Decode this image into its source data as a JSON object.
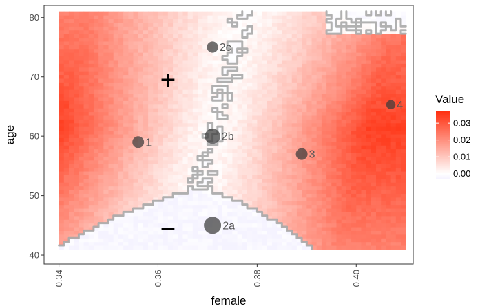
{
  "chart_data": {
    "type": "heatmap",
    "xlabel": "female",
    "ylabel": "age",
    "xlim": [
      0.337,
      0.4115
    ],
    "ylim": [
      38.5,
      82
    ],
    "x_ticks": [
      {
        "value": 0.34,
        "label": "0.34"
      },
      {
        "value": 0.36,
        "label": "0.36"
      },
      {
        "value": 0.38,
        "label": "0.38"
      },
      {
        "value": 0.4,
        "label": "0.40"
      }
    ],
    "y_ticks": [
      {
        "value": 40,
        "label": "40"
      },
      {
        "value": 50,
        "label": "50"
      },
      {
        "value": 60,
        "label": "60"
      },
      {
        "value": 70,
        "label": "70"
      },
      {
        "value": 80,
        "label": "80"
      }
    ],
    "grid": false,
    "legend": {
      "title": "Value",
      "placement": "right",
      "range": [
        -0.003,
        0.037
      ],
      "ticks": [
        {
          "value": 0.0,
          "label": "0.00"
        },
        {
          "value": 0.01,
          "label": "0.01"
        },
        {
          "value": 0.02,
          "label": "0.02"
        },
        {
          "value": 0.03,
          "label": "0.03"
        }
      ],
      "colors": [
        "#f5f3ff",
        "#ffffff",
        "#ff3010"
      ]
    },
    "heatmap_extent": {
      "x": [
        0.34,
        0.41
      ],
      "y": [
        41,
        81
      ]
    },
    "points": [
      {
        "label": "1",
        "x": 0.356,
        "y": 59,
        "size": 1.0
      },
      {
        "label": "2a",
        "x": 0.371,
        "y": 45,
        "size": 1.9
      },
      {
        "label": "2b",
        "x": 0.371,
        "y": 60,
        "size": 1.6
      },
      {
        "label": "2c",
        "x": 0.371,
        "y": 75,
        "size": 0.9
      },
      {
        "label": "3",
        "x": 0.389,
        "y": 57,
        "size": 1.0
      },
      {
        "label": "4",
        "x": 0.407,
        "y": 65.3,
        "size": 0.6
      }
    ],
    "annotations": [
      {
        "text": "+",
        "x": 0.362,
        "y": 69.5
      },
      {
        "text": "−",
        "x": 0.362,
        "y": 44.5
      }
    ]
  }
}
